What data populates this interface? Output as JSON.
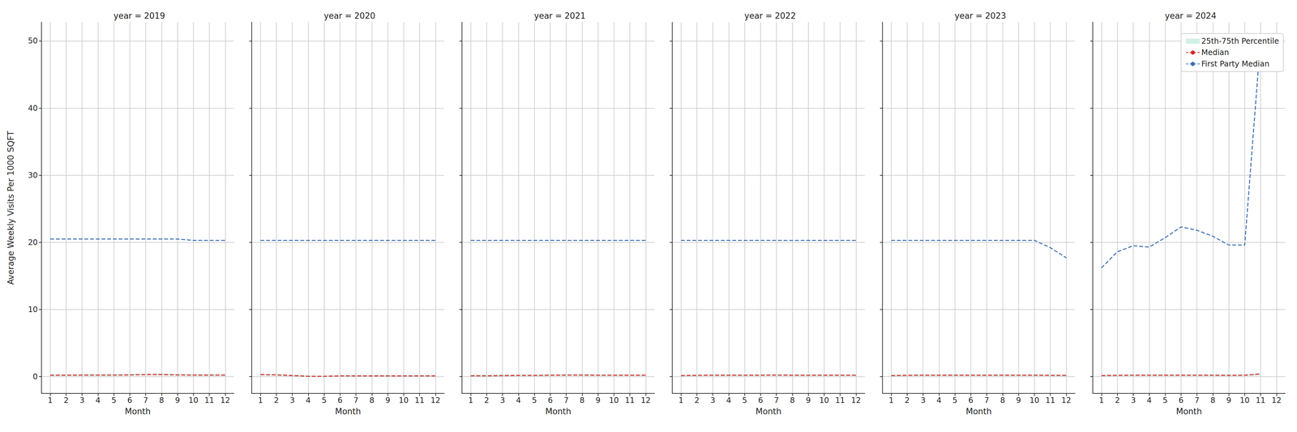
{
  "chart_data": [
    {
      "type": "line",
      "title": "year = 2019",
      "x_label": "Month",
      "y_label": "Average Weekly Visits Per 1000 SQFT",
      "x": [
        1,
        2,
        3,
        4,
        5,
        6,
        7,
        8,
        9,
        10,
        11,
        12
      ],
      "xlim": [
        0.45,
        12.55
      ],
      "xticks": [
        1,
        2,
        3,
        4,
        5,
        6,
        7,
        8,
        9,
        10,
        11,
        12
      ],
      "ylim": [
        -2.5,
        52.8
      ],
      "yticks": [
        0,
        10,
        20,
        30,
        40,
        50
      ],
      "grid": true,
      "series": [
        {
          "name": "25th-75th Percentile",
          "type": "band",
          "color": "#d3efe4",
          "lower": [
            0.1,
            0.1,
            0.1,
            0.1,
            0.1,
            0.15,
            0.2,
            0.2,
            0.15,
            0.1,
            0.1,
            0.1
          ],
          "upper": [
            0.35,
            0.35,
            0.35,
            0.35,
            0.35,
            0.4,
            0.45,
            0.45,
            0.4,
            0.35,
            0.35,
            0.35
          ]
        },
        {
          "name": "Median",
          "type": "line",
          "color": "#d62728",
          "line_style": "dashed",
          "values": [
            0.2,
            0.2,
            0.22,
            0.22,
            0.22,
            0.25,
            0.3,
            0.3,
            0.25,
            0.22,
            0.22,
            0.22
          ]
        },
        {
          "name": "First Party Median",
          "type": "line",
          "color": "#3b6db3",
          "line_style": "dashed",
          "values": [
            20.5,
            20.5,
            20.5,
            20.5,
            20.5,
            20.5,
            20.5,
            20.5,
            20.5,
            20.3,
            20.3,
            20.3
          ]
        }
      ]
    },
    {
      "type": "line",
      "title": "year = 2020",
      "x_label": "Month",
      "tick_labels": "x",
      "x": [
        1,
        2,
        3,
        4,
        5,
        6,
        7,
        8,
        9,
        10,
        11,
        12
      ],
      "xlim": [
        0.45,
        12.55
      ],
      "xticks": [
        1,
        2,
        3,
        4,
        5,
        6,
        7,
        8,
        9,
        10,
        11,
        12
      ],
      "ylim": [
        -2.5,
        52.8
      ],
      "yticks": [
        0,
        10,
        20,
        30,
        40,
        50
      ],
      "grid": true,
      "series": [
        {
          "name": "25th-75th Percentile",
          "type": "band",
          "color": "#d3efe4",
          "lower": [
            0.15,
            0.12,
            0.05,
            0.0,
            0.0,
            0.02,
            0.03,
            0.03,
            0.03,
            0.03,
            0.03,
            0.03
          ],
          "upper": [
            0.4,
            0.38,
            0.28,
            0.15,
            0.15,
            0.2,
            0.22,
            0.22,
            0.22,
            0.22,
            0.22,
            0.22
          ]
        },
        {
          "name": "Median",
          "type": "line",
          "color": "#d62728",
          "line_style": "dashed",
          "values": [
            0.3,
            0.25,
            0.15,
            0.05,
            0.05,
            0.1,
            0.1,
            0.1,
            0.1,
            0.1,
            0.1,
            0.1
          ]
        },
        {
          "name": "First Party Median",
          "type": "line",
          "color": "#3b6db3",
          "line_style": "dashed",
          "values": [
            20.3,
            20.3,
            20.3,
            20.3,
            20.3,
            20.3,
            20.3,
            20.3,
            20.3,
            20.3,
            20.3,
            20.3
          ]
        }
      ]
    },
    {
      "type": "line",
      "title": "year = 2021",
      "x_label": "Month",
      "tick_labels": "x",
      "x": [
        1,
        2,
        3,
        4,
        5,
        6,
        7,
        8,
        9,
        10,
        11,
        12
      ],
      "xlim": [
        0.45,
        12.55
      ],
      "xticks": [
        1,
        2,
        3,
        4,
        5,
        6,
        7,
        8,
        9,
        10,
        11,
        12
      ],
      "ylim": [
        -2.5,
        52.8
      ],
      "yticks": [
        0,
        10,
        20,
        30,
        40,
        50
      ],
      "grid": true,
      "series": [
        {
          "name": "25th-75th Percentile",
          "type": "band",
          "color": "#d3efe4",
          "lower": [
            0.05,
            0.05,
            0.07,
            0.08,
            0.08,
            0.1,
            0.12,
            0.12,
            0.1,
            0.1,
            0.1,
            0.1
          ],
          "upper": [
            0.28,
            0.28,
            0.3,
            0.3,
            0.3,
            0.33,
            0.35,
            0.35,
            0.33,
            0.32,
            0.32,
            0.32
          ]
        },
        {
          "name": "Median",
          "type": "line",
          "color": "#d62728",
          "line_style": "dashed",
          "values": [
            0.12,
            0.12,
            0.15,
            0.17,
            0.17,
            0.2,
            0.22,
            0.22,
            0.2,
            0.2,
            0.2,
            0.2
          ]
        },
        {
          "name": "First Party Median",
          "type": "line",
          "color": "#3b6db3",
          "line_style": "dashed",
          "values": [
            20.3,
            20.3,
            20.3,
            20.3,
            20.3,
            20.3,
            20.3,
            20.3,
            20.3,
            20.3,
            20.3,
            20.3
          ]
        }
      ]
    },
    {
      "type": "line",
      "title": "year = 2022",
      "x_label": "Month",
      "tick_labels": "x",
      "x": [
        1,
        2,
        3,
        4,
        5,
        6,
        7,
        8,
        9,
        10,
        11,
        12
      ],
      "xlim": [
        0.45,
        12.55
      ],
      "xticks": [
        1,
        2,
        3,
        4,
        5,
        6,
        7,
        8,
        9,
        10,
        11,
        12
      ],
      "ylim": [
        -2.5,
        52.8
      ],
      "yticks": [
        0,
        10,
        20,
        30,
        40,
        50
      ],
      "grid": true,
      "series": [
        {
          "name": "25th-75th Percentile",
          "type": "band",
          "color": "#d3efe4",
          "lower": [
            0.08,
            0.1,
            0.1,
            0.1,
            0.1,
            0.1,
            0.12,
            0.1,
            0.1,
            0.1,
            0.1,
            0.1
          ],
          "upper": [
            0.3,
            0.32,
            0.33,
            0.33,
            0.33,
            0.33,
            0.35,
            0.33,
            0.33,
            0.32,
            0.32,
            0.32
          ]
        },
        {
          "name": "Median",
          "type": "line",
          "color": "#d62728",
          "line_style": "dashed",
          "values": [
            0.15,
            0.18,
            0.2,
            0.2,
            0.2,
            0.2,
            0.22,
            0.2,
            0.2,
            0.2,
            0.2,
            0.2
          ]
        },
        {
          "name": "First Party Median",
          "type": "line",
          "color": "#3b6db3",
          "line_style": "dashed",
          "values": [
            20.3,
            20.3,
            20.3,
            20.3,
            20.3,
            20.3,
            20.3,
            20.3,
            20.3,
            20.3,
            20.3,
            20.3
          ]
        }
      ]
    },
    {
      "type": "line",
      "title": "year = 2023",
      "x_label": "Month",
      "tick_labels": "x",
      "x": [
        1,
        2,
        3,
        4,
        5,
        6,
        7,
        8,
        9,
        10,
        11,
        12
      ],
      "xlim": [
        0.45,
        12.55
      ],
      "xticks": [
        1,
        2,
        3,
        4,
        5,
        6,
        7,
        8,
        9,
        10,
        11,
        12
      ],
      "ylim": [
        -2.5,
        52.8
      ],
      "yticks": [
        0,
        10,
        20,
        30,
        40,
        50
      ],
      "grid": true,
      "series": [
        {
          "name": "25th-75th Percentile",
          "type": "band",
          "color": "#d3efe4",
          "lower": [
            0.08,
            0.1,
            0.1,
            0.1,
            0.1,
            0.1,
            0.1,
            0.1,
            0.1,
            0.1,
            0.1,
            0.1
          ],
          "upper": [
            0.3,
            0.32,
            0.33,
            0.33,
            0.33,
            0.33,
            0.33,
            0.33,
            0.33,
            0.33,
            0.32,
            0.32
          ]
        },
        {
          "name": "Median",
          "type": "line",
          "color": "#d62728",
          "line_style": "dashed",
          "values": [
            0.15,
            0.18,
            0.2,
            0.2,
            0.2,
            0.2,
            0.2,
            0.2,
            0.2,
            0.2,
            0.18,
            0.18
          ]
        },
        {
          "name": "First Party Median",
          "type": "line",
          "color": "#3b6db3",
          "line_style": "dashed",
          "values": [
            20.3,
            20.3,
            20.3,
            20.3,
            20.3,
            20.3,
            20.3,
            20.3,
            20.3,
            20.3,
            19.2,
            17.7
          ]
        }
      ]
    },
    {
      "type": "line",
      "title": "year = 2024",
      "x_label": "Month",
      "tick_labels": "x",
      "legend": "upper right",
      "x": [
        1,
        2,
        3,
        4,
        5,
        6,
        7,
        8,
        9,
        10,
        11,
        12
      ],
      "xlim": [
        0.45,
        12.55
      ],
      "xticks": [
        1,
        2,
        3,
        4,
        5,
        6,
        7,
        8,
        9,
        10,
        11,
        12
      ],
      "ylim": [
        -2.5,
        52.8
      ],
      "yticks": [
        0,
        10,
        20,
        30,
        40,
        50
      ],
      "grid": true,
      "series": [
        {
          "name": "25th-75th Percentile",
          "type": "band",
          "color": "#d3efe4",
          "lower": [
            0.08,
            0.1,
            0.1,
            0.1,
            0.1,
            0.1,
            0.1,
            0.1,
            0.1,
            0.1,
            0.2,
            null
          ],
          "upper": [
            0.3,
            0.32,
            0.33,
            0.33,
            0.33,
            0.33,
            0.33,
            0.33,
            0.33,
            0.33,
            0.55,
            null
          ]
        },
        {
          "name": "Median",
          "type": "line",
          "color": "#d62728",
          "line_style": "dashed",
          "values": [
            0.15,
            0.18,
            0.2,
            0.2,
            0.2,
            0.2,
            0.2,
            0.2,
            0.18,
            0.2,
            0.4,
            null
          ]
        },
        {
          "name": "First Party Median",
          "type": "line",
          "color": "#3b6db3",
          "line_style": "dashed",
          "values": [
            16.2,
            18.6,
            19.5,
            19.3,
            20.7,
            22.3,
            21.8,
            20.9,
            19.6,
            19.6,
            50.3,
            null
          ]
        }
      ]
    }
  ]
}
